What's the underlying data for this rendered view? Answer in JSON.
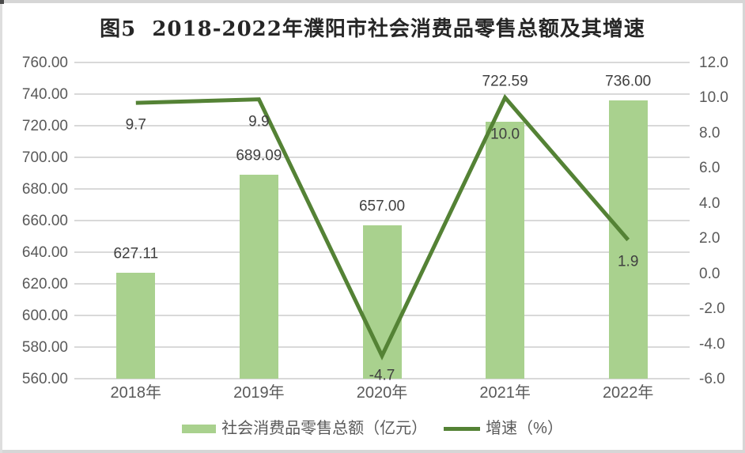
{
  "chart_data": {
    "type": "bar",
    "subtype": "combo-bar-line",
    "title": "图5  2018-2022年濮阳市社会消费品零售总额及其增速",
    "categories": [
      "2018年",
      "2019年",
      "2020年",
      "2021年",
      "2022年"
    ],
    "series": [
      {
        "name": "社会消费品零售总额（亿元）",
        "chart_type": "bar",
        "axis": "left",
        "values": [
          627.11,
          689.09,
          657.0,
          722.59,
          736.0
        ],
        "labels": [
          "627.11",
          "689.09",
          "657.00",
          "722.59",
          "736.00"
        ],
        "color": "#a9d18e"
      },
      {
        "name": "增速（%）",
        "chart_type": "line",
        "axis": "right",
        "values": [
          9.7,
          9.9,
          -4.7,
          10.0,
          1.9
        ],
        "labels": [
          "9.7",
          "9.9",
          "-4.7",
          "10.0",
          "1.9"
        ],
        "color": "#548235"
      }
    ],
    "left_axis": {
      "min": 560,
      "max": 760,
      "step": 20,
      "ticks": [
        "560.00",
        "580.00",
        "600.00",
        "620.00",
        "640.00",
        "660.00",
        "680.00",
        "700.00",
        "720.00",
        "740.00",
        "760.00"
      ]
    },
    "right_axis": {
      "min": -6,
      "max": 12,
      "step": 2,
      "ticks": [
        "-6.0",
        "-4.0",
        "-2.0",
        "0.0",
        "2.0",
        "4.0",
        "6.0",
        "8.0",
        "10.0",
        "12.0"
      ]
    },
    "grid": true,
    "legend_position": "bottom",
    "colors": {
      "bar_fill": "#a9d18e",
      "line_stroke": "#548235",
      "gridline": "#d9d9d9",
      "tick_text": "#595959",
      "label_text": "#404040",
      "title_text": "#262626"
    }
  }
}
